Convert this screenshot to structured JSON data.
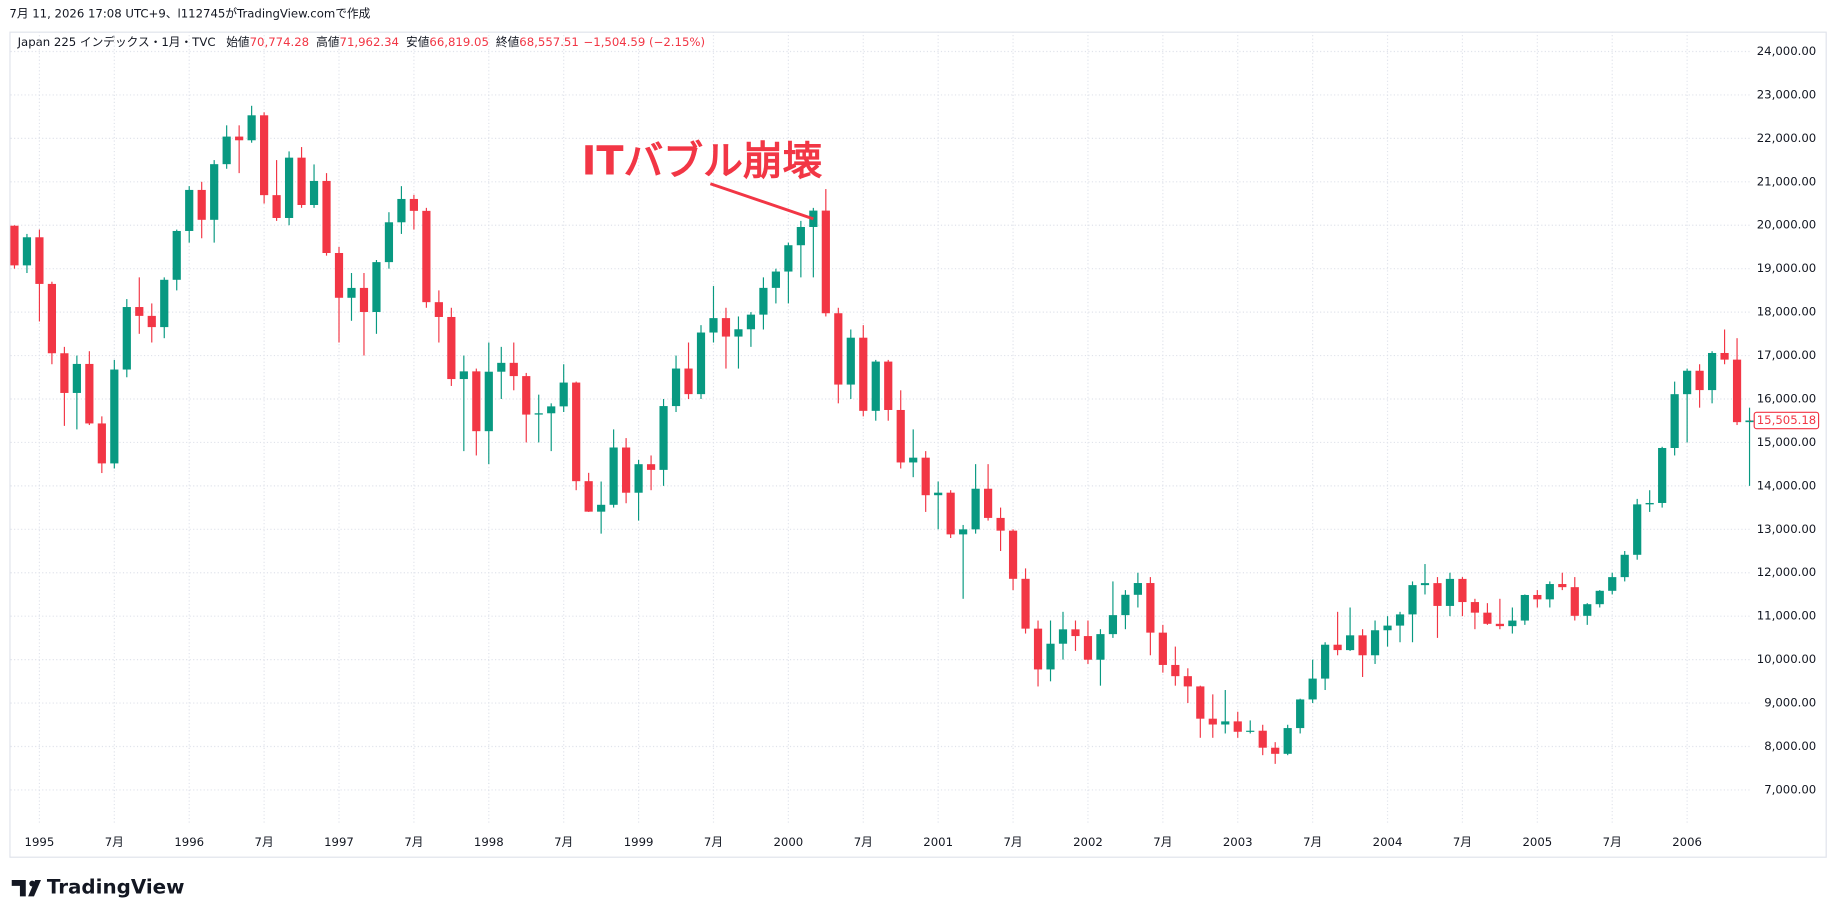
{
  "header": {
    "created": "7月 11, 2026 17:08 UTC+9、l112745がTradingView.comで作成",
    "symbol": "Japan 225 インデックス・1月・TVC",
    "ohlc": [
      {
        "label": "始値",
        "value": "70,774.28"
      },
      {
        "label": "高値",
        "value": "71,962.34"
      },
      {
        "label": "安値",
        "value": "66,819.05"
      },
      {
        "label": "終値",
        "value": "68,557.51"
      }
    ],
    "change": "−1,504.59 (−2.15%)"
  },
  "footer": {
    "logo": "TradingView"
  },
  "chart_data": {
    "type": "candlestick",
    "annotation": "ITバブル崩壊",
    "up_color": "#089981",
    "down_color": "#f23645",
    "grid": true,
    "ylim": [
      6192,
      24458
    ],
    "yticks": [
      {
        "value": 7000,
        "label": "7,000.00"
      },
      {
        "value": 8000,
        "label": "8,000.00"
      },
      {
        "value": 9000,
        "label": "9,000.00"
      },
      {
        "value": 10000,
        "label": "10,000.00"
      },
      {
        "value": 11000,
        "label": "11,000.00"
      },
      {
        "value": 12000,
        "label": "12,000.00"
      },
      {
        "value": 13000,
        "label": "13,000.00"
      },
      {
        "value": 14000,
        "label": "14,000.00"
      },
      {
        "value": 15000,
        "label": "15,000.00"
      },
      {
        "value": 16000,
        "label": "16,000.00"
      },
      {
        "value": 17000,
        "label": "17,000.00"
      },
      {
        "value": 18000,
        "label": "18,000.00"
      },
      {
        "value": 19000,
        "label": "19,000.00"
      },
      {
        "value": 20000,
        "label": "20,000.00"
      },
      {
        "value": 21000,
        "label": "21,000.00"
      },
      {
        "value": 22000,
        "label": "22,000.00"
      },
      {
        "value": 23000,
        "label": "23,000.00"
      },
      {
        "value": 24000,
        "label": "24,000.00"
      }
    ],
    "last_price_label": "15,505.18",
    "categories": [
      null,
      null,
      "1995",
      null,
      null,
      null,
      null,
      null,
      "7月",
      null,
      null,
      null,
      null,
      null,
      "1996",
      null,
      null,
      null,
      null,
      null,
      "7月",
      null,
      null,
      null,
      null,
      null,
      "1997",
      null,
      null,
      null,
      null,
      null,
      "7月",
      null,
      null,
      null,
      null,
      null,
      "1998",
      null,
      null,
      null,
      null,
      null,
      "7月",
      null,
      null,
      null,
      null,
      null,
      "1999",
      null,
      null,
      null,
      null,
      null,
      "7月",
      null,
      null,
      null,
      null,
      null,
      "2000",
      null,
      null,
      null,
      null,
      null,
      "7月",
      null,
      null,
      null,
      null,
      null,
      "2001",
      null,
      null,
      null,
      null,
      null,
      "7月",
      null,
      null,
      null,
      null,
      null,
      "2002",
      null,
      null,
      null,
      null,
      null,
      "7月",
      null,
      null,
      null,
      null,
      null,
      "2003",
      null,
      null,
      null,
      null,
      null,
      "7月",
      null,
      null,
      null,
      null,
      null,
      "2004",
      null,
      null,
      null,
      null,
      null,
      "7月",
      null,
      null,
      null,
      null,
      null,
      "2005",
      null,
      null,
      null,
      null,
      null,
      "7月",
      null,
      null,
      null,
      null,
      null,
      "2006",
      null,
      null,
      null,
      null,
      null
    ],
    "open": [
      19989,
      19076,
      19723,
      18649,
      17053,
      16139,
      16807,
      15437,
      14517,
      16678,
      18117,
      17913,
      17655,
      18744,
      19868,
      20813,
      20125,
      21406,
      22041,
      21956,
      22531,
      20693,
      20167,
      21556,
      20466,
      21020,
      19361,
      18330,
      18557,
      18003,
      19151,
      20068,
      20605,
      20331,
      18229,
      17888,
      16459,
      16636,
      15259,
      16628,
      16832,
      16527,
      15641,
      15671,
      15830,
      16378,
      14108,
      13406,
      13564,
      14883,
      13842,
      14499,
      14368,
      15837,
      16701,
      16112,
      17530,
      17862,
      17437,
      17605,
      17942,
      18558,
      18934,
      19540,
      19960,
      20337,
      17974,
      16332,
      17411,
      15727,
      16861,
      15747,
      14539,
      14649,
      13785,
      13843,
      12883,
      12999,
      13934,
      13262,
      12969,
      11860,
      10713,
      9774,
      10366,
      10697,
      10542,
      9997,
      10587,
      11024,
      11492,
      11763,
      10621,
      9877,
      9619,
      9383,
      8640,
      8506,
      8578,
      8339,
      8363,
      7972,
      7831,
      8424,
      9083,
      9563,
      10343,
      10219,
      10559,
      10100,
      10676,
      10783,
      11041,
      11715,
      11761,
      11236,
      11858,
      11325,
      11081,
      10824,
      10771,
      10899,
      11488,
      11387,
      11740,
      11668,
      11008,
      11276,
      11584,
      11899,
      12413,
      13574,
      13606,
      14872,
      16111,
      16650,
      16205,
      17059,
      16906,
      15467
    ],
    "high": [
      20000,
      19800,
      19900,
      18700,
      17200,
      17000,
      17100,
      15600,
      16900,
      18300,
      18800,
      18200,
      18800,
      19900,
      20900,
      21000,
      21500,
      22300,
      22300,
      22750,
      22600,
      21500,
      21700,
      21800,
      21400,
      21200,
      19500,
      18900,
      18900,
      19200,
      20300,
      20900,
      20700,
      20400,
      18500,
      18100,
      17000,
      16700,
      17300,
      17200,
      17300,
      16600,
      16100,
      15900,
      16800,
      16400,
      14300,
      14100,
      15300,
      15100,
      14600,
      14700,
      16000,
      17000,
      17300,
      17700,
      18600,
      18100,
      17900,
      18000,
      18800,
      19000,
      19600,
      20100,
      20400,
      20833,
      18100,
      17600,
      17700,
      16900,
      16900,
      16200,
      15300,
      14800,
      14100,
      13900,
      13100,
      14500,
      14500,
      13500,
      13000,
      12100,
      10900,
      10900,
      11100,
      10900,
      10900,
      10700,
      11800,
      11600,
      12000,
      11900,
      10800,
      10300,
      9800,
      9400,
      9200,
      9300,
      8800,
      8600,
      8500,
      8100,
      8500,
      9100,
      10000,
      10400,
      11100,
      11200,
      10700,
      10900,
      11000,
      11100,
      11800,
      12200,
      11900,
      12000,
      11900,
      11400,
      11300,
      11400,
      11200,
      11500,
      11600,
      11800,
      12000,
      11900,
      11300,
      11600,
      12000,
      12500,
      13700,
      13900,
      14900,
      16400,
      16700,
      16800,
      17100,
      17600,
      17400,
      15800
    ],
    "low": [
      19000,
      18900,
      17785,
      16800,
      15381,
      15300,
      15400,
      14295,
      14400,
      16500,
      17500,
      17300,
      17400,
      18500,
      19600,
      19700,
      19600,
      21300,
      21200,
      21900,
      20500,
      20100,
      20000,
      20400,
      20400,
      19300,
      17300,
      17800,
      17000,
      17500,
      19000,
      19800,
      19900,
      18100,
      17300,
      16300,
      14800,
      14700,
      14500,
      16000,
      16200,
      15000,
      15000,
      14800,
      15700,
      13900,
      13400,
      12900,
      13500,
      13600,
      13200,
      13900,
      14000,
      15700,
      16000,
      16000,
      17300,
      16700,
      16700,
      17200,
      17600,
      18200,
      18200,
      18800,
      18800,
      17900,
      15900,
      16000,
      15600,
      15500,
      15500,
      14400,
      14200,
      13400,
      13000,
      12800,
      11400,
      12900,
      13200,
      12500,
      11600,
      10600,
      9382,
      9500,
      10000,
      10200,
      9900,
      9400,
      10500,
      10700,
      11200,
      10100,
      9700,
      9400,
      9000,
      8200,
      8200,
      8300,
      8200,
      8300,
      7800,
      7600,
      7800,
      8300,
      9000,
      9300,
      10100,
      10200,
      9600,
      9900,
      10300,
      10400,
      10400,
      11500,
      10500,
      11000,
      11000,
      10700,
      10800,
      10700,
      10600,
      10800,
      11200,
      11200,
      11600,
      10900,
      10800,
      11200,
      11500,
      11800,
      12300,
      13400,
      13500,
      14700,
      15000,
      15800,
      15900,
      16800,
      15400,
      14000
    ],
    "close": [
      19076,
      19723,
      18649,
      17053,
      16139,
      16807,
      15437,
      14517,
      16678,
      18117,
      17913,
      17655,
      18744,
      19868,
      20813,
      20125,
      21406,
      22041,
      21956,
      22531,
      20693,
      20167,
      21556,
      20466,
      21020,
      19361,
      18330,
      18557,
      18003,
      19151,
      20068,
      20605,
      20331,
      18229,
      17888,
      16459,
      16636,
      15259,
      16628,
      16832,
      16527,
      15641,
      15671,
      15830,
      16378,
      14108,
      13406,
      13564,
      14883,
      13842,
      14499,
      14368,
      15837,
      16701,
      16112,
      17530,
      17862,
      17437,
      17605,
      17942,
      18558,
      18934,
      19540,
      19960,
      20337,
      17974,
      16332,
      17411,
      15727,
      16861,
      15747,
      14539,
      14649,
      13785,
      13843,
      12883,
      12999,
      13934,
      13262,
      12969,
      11860,
      10713,
      9774,
      10366,
      10697,
      10542,
      9997,
      10587,
      11024,
      11492,
      11763,
      10621,
      9877,
      9619,
      9383,
      8640,
      8506,
      8578,
      8339,
      8363,
      7972,
      7831,
      8424,
      9083,
      9563,
      10343,
      10219,
      10559,
      10100,
      10676,
      10783,
      11041,
      11715,
      11761,
      11236,
      11858,
      11325,
      11081,
      10824,
      10771,
      10899,
      11488,
      11387,
      11740,
      11668,
      11008,
      11276,
      11584,
      11899,
      12413,
      13574,
      13606,
      14872,
      16111,
      16650,
      16205,
      17059,
      16906,
      15467,
      15505.18
    ]
  }
}
